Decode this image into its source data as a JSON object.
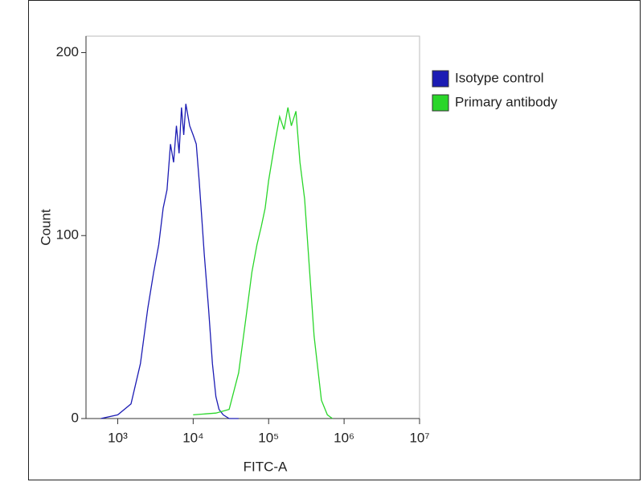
{
  "chart_data": {
    "type": "line",
    "xlabel": "FITC-A",
    "ylabel": "Count",
    "xscale": "log",
    "xlim": [
      380,
      10000000
    ],
    "ylim": [
      0,
      209
    ],
    "xticks": [
      {
        "value": 1000,
        "label": "10³"
      },
      {
        "value": 10000,
        "label": "10⁴"
      },
      {
        "value": 100000,
        "label": "10⁵"
      },
      {
        "value": 1000000,
        "label": "10⁶"
      },
      {
        "value": 10000000,
        "label": "10⁷"
      }
    ],
    "yticks": [
      0,
      100,
      200
    ],
    "legend": "upper right outside",
    "series": [
      {
        "name": "Isotype control",
        "color": "#1c1cb4",
        "x": [
          600,
          1000,
          1500,
          2000,
          2500,
          3000,
          3500,
          4000,
          4500,
          5000,
          5500,
          6000,
          6500,
          7000,
          7500,
          8000,
          9000,
          10000,
          11000,
          12000,
          13000,
          14000,
          16000,
          18000,
          20000,
          22000,
          25000,
          30000,
          40000
        ],
        "values": [
          0,
          2,
          8,
          30,
          60,
          80,
          95,
          115,
          125,
          150,
          140,
          160,
          145,
          170,
          155,
          172,
          160,
          155,
          150,
          130,
          110,
          90,
          60,
          30,
          12,
          5,
          2,
          0,
          0
        ]
      },
      {
        "name": "Primary antibody",
        "color": "#2ad62a",
        "x": [
          10000,
          20000,
          30000,
          40000,
          50000,
          60000,
          70000,
          80000,
          90000,
          100000,
          120000,
          140000,
          160000,
          180000,
          200000,
          230000,
          260000,
          300000,
          350000,
          400000,
          500000,
          600000,
          700000
        ],
        "values": [
          2,
          3,
          5,
          25,
          55,
          80,
          95,
          105,
          115,
          130,
          150,
          165,
          158,
          170,
          160,
          168,
          140,
          120,
          80,
          45,
          10,
          2,
          0
        ]
      }
    ]
  }
}
